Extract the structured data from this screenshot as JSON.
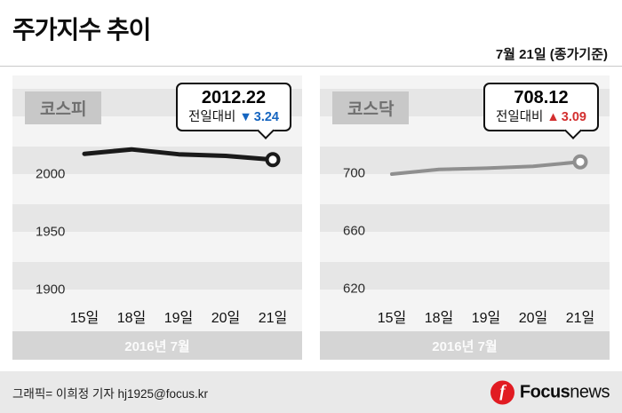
{
  "header": {
    "title": "주가지수 추이",
    "date_note": "7월 21일 (종가기준)"
  },
  "chart_data": [
    {
      "type": "line",
      "index_name": "코스피",
      "x": [
        "15일",
        "18일",
        "19일",
        "20일",
        "21일"
      ],
      "values": [
        2017.3,
        2021.1,
        2016.9,
        2015.5,
        2012.22
      ],
      "ylim": [
        1893,
        2085
      ],
      "yticks": [
        2000,
        1950,
        1900
      ],
      "period_label": "2016년 7월",
      "line_color": "#1a1a1a",
      "marker": "open-circle",
      "grid": "horizontal-bands",
      "legend": "none",
      "callout": {
        "value": "2012.22",
        "prefix": "전일대비",
        "arrow": "▼",
        "change": "3.24",
        "direction": "down",
        "change_color": "#1565c0"
      }
    },
    {
      "type": "line",
      "index_name": "코스닥",
      "x": [
        "15일",
        "18일",
        "19일",
        "20일",
        "21일"
      ],
      "values": [
        699.6,
        702.9,
        703.7,
        705.0,
        708.12
      ],
      "ylim": [
        614,
        768
      ],
      "yticks": [
        700,
        660,
        620
      ],
      "period_label": "2016년 7월",
      "line_color": "#8f8f8f",
      "marker": "open-circle",
      "grid": "horizontal-bands",
      "legend": "none",
      "callout": {
        "value": "708.12",
        "prefix": "전일대비",
        "arrow": "▲",
        "change": "3.09",
        "direction": "up",
        "change_color": "#d32f2f"
      }
    }
  ],
  "footer": {
    "credit": "그래픽= 이희정 기자 hj1925@focus.kr",
    "logo": {
      "icon_letter": "f",
      "brand_strong": "Focus",
      "brand_light": "news"
    }
  }
}
